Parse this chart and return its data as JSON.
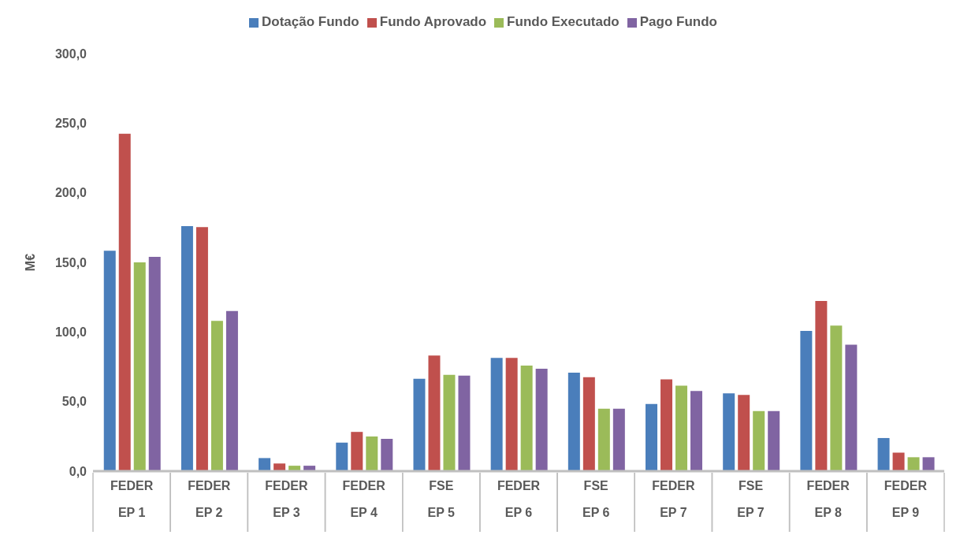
{
  "chart_data": {
    "type": "bar",
    "ylabel": "M€",
    "categories": [
      "FEDER\nEP 1",
      "FEDER\nEP 2",
      "FEDER\nEP 3",
      "FEDER\nEP 4",
      "FSE\nEP 5",
      "FEDER\nEP 6",
      "FSE\nEP 6",
      "FEDER\nEP 7",
      "FSE\nEP 7",
      "FEDER\nEP 8",
      "FEDER\nEP 9"
    ],
    "series": [
      {
        "name": "Dotação Fundo",
        "color": "#4a7ebb",
        "values": [
          158.3,
          176,
          9.4,
          20.5,
          66.4,
          81.4,
          70.8,
          48.2,
          55.9,
          100.7,
          23.8
        ]
      },
      {
        "name": "Fundo Aprovado",
        "color": "#c0504d",
        "values": [
          242.4,
          175.4,
          5.5,
          28.2,
          83,
          81.4,
          67.5,
          65.9,
          54.8,
          122.3,
          13.3
        ]
      },
      {
        "name": "Fundo Executado",
        "color": "#9bbb59",
        "values": [
          150,
          108,
          3.9,
          24.9,
          69.2,
          75.8,
          44.8,
          61.4,
          43.2,
          104.6,
          10
        ]
      },
      {
        "name": "Pago Fundo",
        "color": "#8064a2",
        "values": [
          153.9,
          115,
          3.9,
          23.2,
          68.6,
          73.6,
          44.8,
          57.6,
          43.2,
          90.8,
          10
        ]
      }
    ],
    "ylim": [
      0,
      300
    ],
    "yticks": [
      {
        "value": 0,
        "label": "0,0"
      },
      {
        "value": 50,
        "label": "50,0"
      },
      {
        "value": 100,
        "label": "100,0"
      },
      {
        "value": 150,
        "label": "150,0"
      },
      {
        "value": 200,
        "label": "200,0"
      },
      {
        "value": 250,
        "label": "250,0"
      },
      {
        "value": 300,
        "label": "300,0"
      }
    ],
    "grid": false,
    "legend": "top"
  }
}
